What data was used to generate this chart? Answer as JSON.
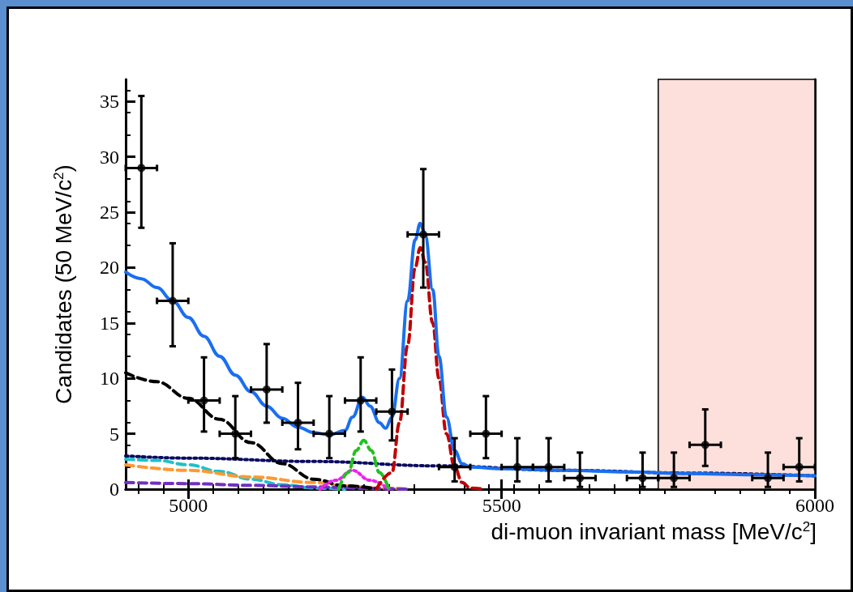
{
  "chart_data": {
    "type": "scatter",
    "xlabel": "di-muon invariant mass [MeV/c$^{2}$]",
    "ylabel": "Candidates (50 MeV/c$^{2}$)",
    "xlim": [
      4900,
      6000
    ],
    "xticks": [
      5000,
      5500,
      6000
    ],
    "ylim": [
      0,
      37
    ],
    "yticks": [
      0,
      5,
      10,
      15,
      20,
      25,
      30,
      35
    ],
    "grid": false,
    "bands": [
      {
        "axis": "x",
        "from": 5750,
        "to": 6000,
        "color": "#fde0dc"
      }
    ],
    "series": [
      {
        "color": "#000000",
        "marker": "circle",
        "x": [
          4925,
          4975,
          5025,
          5075,
          5125,
          5175,
          5225,
          5275,
          5325,
          5375,
          5425,
          5475,
          5525,
          5575,
          5625,
          5725,
          5775,
          5825,
          5925,
          5975
        ],
        "values": [
          29,
          17,
          8,
          5,
          9,
          6,
          5,
          8,
          7,
          23,
          2,
          5,
          2,
          2,
          1,
          1,
          1,
          4,
          1,
          2
        ],
        "errors": [
          [
            23.6,
            35.5
          ],
          [
            12.9,
            22.2
          ],
          [
            5.2,
            11.9
          ],
          [
            2.8,
            8.4
          ],
          [
            6.0,
            13.1
          ],
          [
            3.6,
            9.6
          ],
          [
            2.8,
            8.4
          ],
          [
            5.2,
            11.9
          ],
          [
            4.4,
            10.8
          ],
          [
            18.2,
            28.9
          ],
          [
            0.7,
            4.6
          ],
          [
            2.8,
            8.4
          ],
          [
            0.7,
            4.6
          ],
          [
            0.7,
            4.6
          ],
          [
            0.2,
            3.3
          ],
          [
            0.2,
            3.3
          ],
          [
            0.2,
            3.3
          ],
          [
            2.1,
            7.2
          ],
          [
            0.2,
            3.3
          ],
          [
            0.7,
            4.6
          ]
        ],
        "xerrors": [
          25,
          25,
          25,
          25,
          25,
          25,
          25,
          25,
          25,
          25,
          25,
          25,
          25,
          25,
          25,
          25,
          25,
          25,
          25,
          25
        ]
      },
      {
        "type": "line",
        "color": "#0a0a60",
        "line_style": "dotted",
        "marker": "none",
        "x": [
          4900,
          5000,
          5200,
          5400,
          5600,
          5800,
          6000
        ],
        "values": [
          3.0,
          2.8,
          2.5,
          2.1,
          1.7,
          1.45,
          1.2
        ]
      },
      {
        "type": "line",
        "color": "#20c0c8",
        "line_style": "dashed",
        "marker": "none",
        "x": [
          4900,
          4950,
          5000,
          5050,
          5100,
          5150,
          5200,
          5250
        ],
        "values": [
          2.7,
          2.6,
          2.2,
          1.6,
          0.9,
          0.4,
          0.1,
          0
        ]
      },
      {
        "type": "line",
        "color": "#ff9933",
        "line_style": "dashed",
        "marker": "none",
        "x": [
          4900,
          5000,
          5100,
          5200,
          5250,
          5300,
          5350
        ],
        "values": [
          2.2,
          1.7,
          1.1,
          0.6,
          0.3,
          0.1,
          0
        ]
      },
      {
        "type": "line",
        "color": "#7030c0",
        "line_style": "dashed",
        "marker": "none",
        "x": [
          4900,
          5000,
          5100,
          5200,
          5300,
          5350
        ],
        "values": [
          0.6,
          0.5,
          0.35,
          0.2,
          0.05,
          0
        ]
      },
      {
        "type": "line",
        "color": "#000000",
        "line_style": "dashed",
        "marker": "none",
        "x": [
          4900,
          4950,
          5000,
          5050,
          5100,
          5150,
          5200,
          5250,
          5300
        ],
        "values": [
          10.5,
          9.7,
          8.2,
          6.3,
          4.2,
          2.3,
          0.9,
          0.3,
          0.05
        ]
      },
      {
        "type": "line",
        "color": "#ee22ee",
        "line_style": "dotted",
        "marker": "none",
        "x": [
          5210,
          5235,
          5262,
          5290,
          5320
        ],
        "values": [
          0,
          0.8,
          1.7,
          0.8,
          0
        ]
      },
      {
        "type": "line",
        "color": "#22c022",
        "line_style": "dashed",
        "marker": "none",
        "x": [
          5240,
          5255,
          5268,
          5280,
          5292,
          5305,
          5320
        ],
        "values": [
          0,
          1.5,
          3.5,
          4.4,
          3.5,
          1.5,
          0
        ]
      },
      {
        "type": "line",
        "color": "#c00000",
        "line_style": "dashed",
        "marker": "none",
        "x": [
          5300,
          5325,
          5337,
          5350,
          5362,
          5370,
          5378,
          5390,
          5400,
          5412,
          5425,
          5437,
          5450,
          5470
        ],
        "values": [
          0,
          1.5,
          6,
          13,
          20,
          21.8,
          20.5,
          15,
          10,
          5,
          2,
          0.6,
          0.1,
          0
        ]
      },
      {
        "type": "line",
        "color": "#1a6fef",
        "line_style": "solid",
        "marker": "none",
        "x": [
          4900,
          4925,
          4950,
          4975,
          5000,
          5025,
          5050,
          5075,
          5100,
          5125,
          5150,
          5175,
          5200,
          5225,
          5250,
          5262,
          5278,
          5290,
          5305,
          5315,
          5325,
          5337,
          5350,
          5362,
          5370,
          5378,
          5390,
          5400,
          5412,
          5425,
          5437,
          5450,
          5500,
          5600,
          5700,
          5800,
          5900,
          6000
        ],
        "values": [
          19.6,
          19.0,
          18.2,
          17.0,
          15.5,
          13.8,
          12.0,
          10.3,
          8.8,
          7.5,
          6.4,
          5.6,
          5.1,
          4.9,
          5.3,
          6.5,
          8.3,
          7.5,
          6.0,
          5.5,
          6.5,
          10,
          17,
          22.5,
          24,
          23,
          18,
          12,
          6.5,
          3.5,
          2.3,
          2.0,
          1.85,
          1.7,
          1.55,
          1.4,
          1.3,
          1.2
        ]
      }
    ]
  }
}
